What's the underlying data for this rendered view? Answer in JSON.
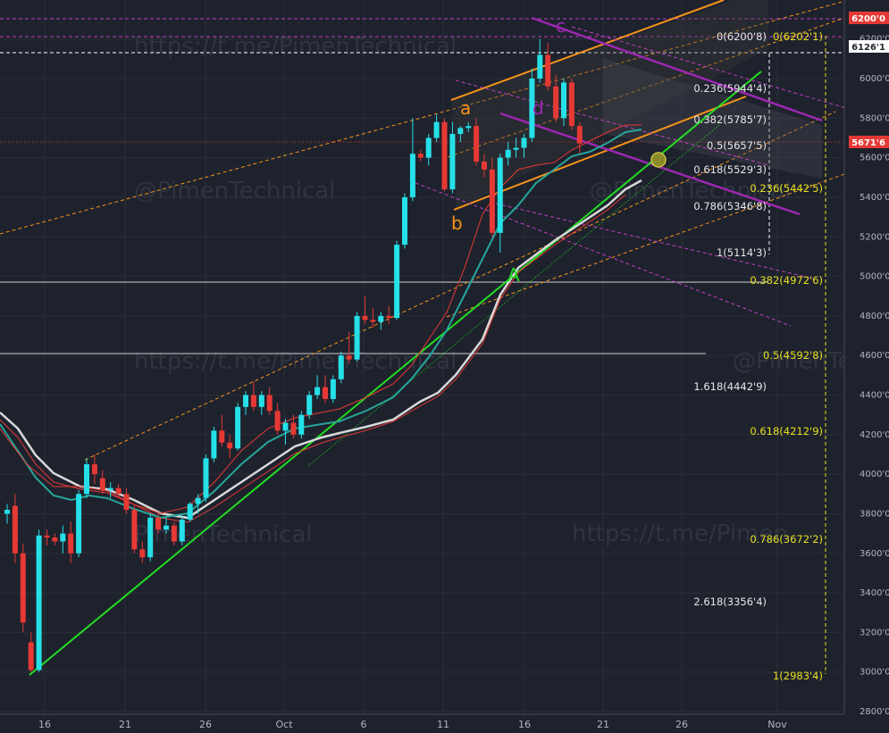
{
  "chart_data": {
    "type": "candlestick",
    "title": "",
    "x_axis": {
      "tick_labels": [
        "16",
        "21",
        "26",
        "Oct",
        "6",
        "11",
        "16",
        "21",
        "26",
        "Nov"
      ]
    },
    "y_axis": {
      "ylim": [
        2780,
        6300
      ],
      "tick_labels": [
        "2800'0",
        "3000'0",
        "3200'0",
        "3400'0",
        "3600'0",
        "3800'0",
        "4000'0",
        "4200'0",
        "4400'0",
        "4600'0",
        "4800'0",
        "5000'0",
        "5200'0",
        "5400'0",
        "5600'0",
        "5800'0",
        "6000'0",
        "6200'0"
      ],
      "tick_values": [
        2800,
        3000,
        3200,
        3400,
        3600,
        3800,
        4000,
        4200,
        4400,
        4600,
        4800,
        5000,
        5200,
        5400,
        5600,
        5800,
        6000,
        6200
      ]
    },
    "price_tags": [
      {
        "label": "6200'0",
        "value": 6200,
        "color": "#e53935"
      },
      {
        "label": "6126'1",
        "value": 6126.1,
        "color": "#ffffff"
      },
      {
        "label": "5671'6",
        "value": 5671.6,
        "color": "#e53935"
      }
    ],
    "candles": [
      {
        "o": 3800,
        "h": 3850,
        "l": 3750,
        "c": 3820
      },
      {
        "o": 3840,
        "h": 3900,
        "l": 3550,
        "c": 3600
      },
      {
        "o": 3600,
        "h": 3650,
        "l": 3200,
        "c": 3250
      },
      {
        "o": 3150,
        "h": 3200,
        "l": 3000,
        "c": 3010
      },
      {
        "o": 3010,
        "h": 3720,
        "l": 3000,
        "c": 3690
      },
      {
        "o": 3690,
        "h": 3720,
        "l": 3640,
        "c": 3680
      },
      {
        "o": 3680,
        "h": 3700,
        "l": 3640,
        "c": 3660
      },
      {
        "o": 3660,
        "h": 3740,
        "l": 3600,
        "c": 3700
      },
      {
        "o": 3700,
        "h": 3760,
        "l": 3550,
        "c": 3600
      },
      {
        "o": 3600,
        "h": 3920,
        "l": 3580,
        "c": 3900
      },
      {
        "o": 3900,
        "h": 4080,
        "l": 3880,
        "c": 4050
      },
      {
        "o": 4050,
        "h": 4100,
        "l": 3950,
        "c": 4000
      },
      {
        "o": 3980,
        "h": 4020,
        "l": 3900,
        "c": 3920
      },
      {
        "o": 3920,
        "h": 3960,
        "l": 3880,
        "c": 3930
      },
      {
        "o": 3930,
        "h": 3950,
        "l": 3880,
        "c": 3900
      },
      {
        "o": 3900,
        "h": 3930,
        "l": 3800,
        "c": 3820
      },
      {
        "o": 3820,
        "h": 3840,
        "l": 3600,
        "c": 3620
      },
      {
        "o": 3620,
        "h": 3660,
        "l": 3550,
        "c": 3580
      },
      {
        "o": 3580,
        "h": 3800,
        "l": 3560,
        "c": 3780
      },
      {
        "o": 3780,
        "h": 3800,
        "l": 3700,
        "c": 3720
      },
      {
        "o": 3720,
        "h": 3780,
        "l": 3700,
        "c": 3740
      },
      {
        "o": 3740,
        "h": 3760,
        "l": 3640,
        "c": 3660
      },
      {
        "o": 3660,
        "h": 3790,
        "l": 3640,
        "c": 3770
      },
      {
        "o": 3770,
        "h": 3860,
        "l": 3760,
        "c": 3850
      },
      {
        "o": 3850,
        "h": 3900,
        "l": 3800,
        "c": 3880
      },
      {
        "o": 3880,
        "h": 4100,
        "l": 3860,
        "c": 4080
      },
      {
        "o": 4080,
        "h": 4240,
        "l": 4060,
        "c": 4220
      },
      {
        "o": 4220,
        "h": 4300,
        "l": 4140,
        "c": 4160
      },
      {
        "o": 4160,
        "h": 4200,
        "l": 4080,
        "c": 4130
      },
      {
        "o": 4130,
        "h": 4360,
        "l": 4120,
        "c": 4340
      },
      {
        "o": 4340,
        "h": 4420,
        "l": 4300,
        "c": 4400
      },
      {
        "o": 4400,
        "h": 4470,
        "l": 4320,
        "c": 4340
      },
      {
        "o": 4340,
        "h": 4420,
        "l": 4300,
        "c": 4400
      },
      {
        "o": 4400,
        "h": 4440,
        "l": 4300,
        "c": 4320
      },
      {
        "o": 4320,
        "h": 4360,
        "l": 4200,
        "c": 4220
      },
      {
        "o": 4220,
        "h": 4280,
        "l": 4150,
        "c": 4260
      },
      {
        "o": 4260,
        "h": 4300,
        "l": 4180,
        "c": 4200
      },
      {
        "o": 4200,
        "h": 4320,
        "l": 4180,
        "c": 4300
      },
      {
        "o": 4300,
        "h": 4420,
        "l": 4280,
        "c": 4400
      },
      {
        "o": 4400,
        "h": 4500,
        "l": 4380,
        "c": 4440
      },
      {
        "o": 4440,
        "h": 4500,
        "l": 4360,
        "c": 4380
      },
      {
        "o": 4380,
        "h": 4500,
        "l": 4360,
        "c": 4480
      },
      {
        "o": 4480,
        "h": 4620,
        "l": 4460,
        "c": 4600
      },
      {
        "o": 4600,
        "h": 4720,
        "l": 4560,
        "c": 4580
      },
      {
        "o": 4580,
        "h": 4820,
        "l": 4570,
        "c": 4800
      },
      {
        "o": 4800,
        "h": 4900,
        "l": 4760,
        "c": 4780
      },
      {
        "o": 4780,
        "h": 4840,
        "l": 4740,
        "c": 4770
      },
      {
        "o": 4770,
        "h": 4820,
        "l": 4730,
        "c": 4800
      },
      {
        "o": 4800,
        "h": 4850,
        "l": 4760,
        "c": 4790
      },
      {
        "o": 4790,
        "h": 5180,
        "l": 4780,
        "c": 5160
      },
      {
        "o": 5160,
        "h": 5420,
        "l": 5140,
        "c": 5400
      },
      {
        "o": 5400,
        "h": 5800,
        "l": 5380,
        "c": 5620
      },
      {
        "o": 5620,
        "h": 5640,
        "l": 5580,
        "c": 5600
      },
      {
        "o": 5600,
        "h": 5720,
        "l": 5560,
        "c": 5700
      },
      {
        "o": 5700,
        "h": 5820,
        "l": 5680,
        "c": 5780
      },
      {
        "o": 5780,
        "h": 5800,
        "l": 5430,
        "c": 5440
      },
      {
        "o": 5440,
        "h": 5780,
        "l": 5420,
        "c": 5720
      },
      {
        "o": 5720,
        "h": 5760,
        "l": 5680,
        "c": 5750
      },
      {
        "o": 5750,
        "h": 5780,
        "l": 5730,
        "c": 5760
      },
      {
        "o": 5760,
        "h": 5800,
        "l": 5560,
        "c": 5580
      },
      {
        "o": 5580,
        "h": 5620,
        "l": 5500,
        "c": 5540
      },
      {
        "o": 5540,
        "h": 5600,
        "l": 5200,
        "c": 5220
      },
      {
        "o": 5220,
        "h": 5620,
        "l": 5120,
        "c": 5600
      },
      {
        "o": 5600,
        "h": 5680,
        "l": 5560,
        "c": 5640
      },
      {
        "o": 5640,
        "h": 5700,
        "l": 5600,
        "c": 5650
      },
      {
        "o": 5650,
        "h": 5720,
        "l": 5600,
        "c": 5700
      },
      {
        "o": 5700,
        "h": 6050,
        "l": 5680,
        "c": 6000
      },
      {
        "o": 6000,
        "h": 6200,
        "l": 5980,
        "c": 6120
      },
      {
        "o": 6120,
        "h": 6180,
        "l": 5940,
        "c": 5960
      },
      {
        "o": 5960,
        "h": 6020,
        "l": 5780,
        "c": 5800
      },
      {
        "o": 5800,
        "h": 6000,
        "l": 5760,
        "c": 5980
      },
      {
        "o": 5980,
        "h": 6000,
        "l": 5740,
        "c": 5760
      },
      {
        "o": 5760,
        "h": 5780,
        "l": 5620,
        "c": 5672
      }
    ],
    "fib_levels_left": [
      {
        "label": "0(6200'8)",
        "value": 6200.8
      },
      {
        "label": "0.236(5944'4)",
        "value": 5944.4
      },
      {
        "label": "0.382(5785'7)",
        "value": 5785.7
      },
      {
        "label": "0.5(5657'5)",
        "value": 5657.5
      },
      {
        "label": "0.618(5529'3)",
        "value": 5529.3
      },
      {
        "label": "0.786(5346'8)",
        "value": 5346.8
      },
      {
        "label": "1(5114'3)",
        "value": 5114.3
      },
      {
        "label": "1.618(4442'9)",
        "value": 4442.9
      },
      {
        "label": "2.618(3356'4)",
        "value": 3356.4
      }
    ],
    "fib_levels_right": [
      {
        "label": "0(6202'1)",
        "value": 6202.1
      },
      {
        "label": "0.236(5442'5)",
        "value": 5442.5
      },
      {
        "label": "0.382(4972'6)",
        "value": 4972.6
      },
      {
        "label": "0.5(4592'8)",
        "value": 4592.8
      },
      {
        "label": "0.618(4212'9)",
        "value": 4212.9
      },
      {
        "label": "0.786(3672'2)",
        "value": 3672.2
      },
      {
        "label": "1(2983'4)",
        "value": 2983.4
      }
    ],
    "horizontal_lines": [
      4972.6,
      4600
    ],
    "wave_labels": [
      {
        "text": "a",
        "color": "#f7931a"
      },
      {
        "text": "b",
        "color": "#f7931a"
      },
      {
        "text": "c",
        "color": "#9c27b0"
      },
      {
        "text": "d",
        "color": "#9c27b0"
      },
      {
        "text": "A",
        "color": "#22dd22"
      }
    ],
    "watermarks": [
      "https://t.me/PimenTechnical",
      "@PimenTechnical",
      "https://t.me/PimenTechnical",
      "@PimenTechnical",
      "@PimenTechnical",
      "https://t.me/Pimen"
    ],
    "colors": {
      "background": "#1e222d",
      "up": "#26e0e8",
      "down": "#e53935",
      "trend": "#22dd22",
      "channel": "#f7931a",
      "purple": "#9c27b0",
      "fib_yellow": "#e8e020",
      "fib_white": "#e6e6e6"
    }
  }
}
